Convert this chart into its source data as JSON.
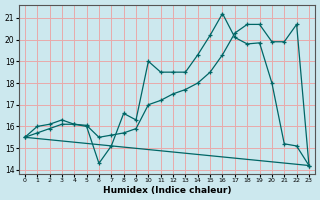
{
  "xlabel": "Humidex (Indice chaleur)",
  "bg_color": "#cce8ee",
  "grid_color": "#e8aaaa",
  "line_color": "#006666",
  "xlim": [
    -0.5,
    23.5
  ],
  "ylim": [
    13.8,
    21.6
  ],
  "xticks": [
    0,
    1,
    2,
    3,
    4,
    5,
    6,
    7,
    8,
    9,
    10,
    11,
    12,
    13,
    14,
    15,
    16,
    17,
    18,
    19,
    20,
    21,
    22,
    23
  ],
  "yticks": [
    14,
    15,
    16,
    17,
    18,
    19,
    20,
    21
  ],
  "series1_x": [
    0,
    1,
    2,
    3,
    4,
    5,
    6,
    7,
    8,
    9,
    10,
    11,
    12,
    13,
    14,
    15,
    16,
    17,
    18,
    19,
    20,
    21,
    22,
    23
  ],
  "series1_y": [
    15.5,
    16.0,
    16.1,
    16.3,
    16.1,
    16.0,
    14.3,
    15.1,
    16.6,
    16.3,
    19.0,
    18.5,
    18.5,
    18.5,
    19.3,
    20.2,
    21.2,
    20.1,
    19.8,
    19.85,
    18.0,
    15.2,
    15.1,
    14.2
  ],
  "series2_x": [
    0,
    1,
    2,
    3,
    4,
    5,
    6,
    7,
    8,
    9,
    10,
    11,
    12,
    13,
    14,
    15,
    16,
    17,
    18,
    19,
    20,
    21,
    22,
    23
  ],
  "series2_y": [
    15.5,
    15.7,
    15.9,
    16.1,
    16.1,
    16.05,
    15.5,
    15.6,
    15.7,
    15.9,
    17.0,
    17.2,
    17.5,
    17.7,
    18.0,
    18.5,
    19.3,
    20.3,
    20.7,
    20.7,
    19.9,
    19.9,
    20.7,
    14.2
  ],
  "series3_x": [
    0,
    23
  ],
  "series3_y": [
    15.5,
    14.2
  ]
}
